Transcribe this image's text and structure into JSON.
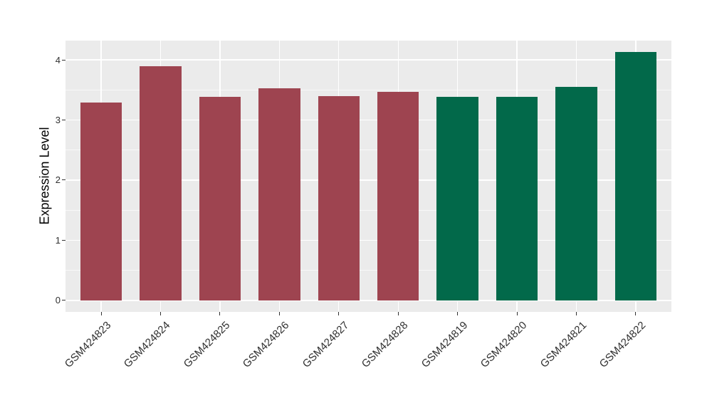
{
  "chart_data": {
    "type": "bar",
    "ylabel": "Expression Level",
    "categories": [
      "GSM424823",
      "GSM424824",
      "GSM424825",
      "GSM424826",
      "GSM424827",
      "GSM424828",
      "GSM424819",
      "GSM424820",
      "GSM424821",
      "GSM424822"
    ],
    "values": [
      3.29,
      3.89,
      3.39,
      3.53,
      3.4,
      3.47,
      3.38,
      3.38,
      3.55,
      4.13
    ],
    "bar_colors": [
      "#9E4450",
      "#9E4450",
      "#9E4450",
      "#9E4450",
      "#9E4450",
      "#9E4450",
      "#02694A",
      "#02694A",
      "#02694A",
      "#02694A"
    ],
    "y_ticks": [
      0,
      1,
      2,
      3,
      4
    ],
    "y_minor_ticks": [
      0.5,
      1.5,
      2.5,
      3.5
    ],
    "ylim": [
      -0.19,
      4.32
    ],
    "grid": true,
    "legend": "none",
    "x_tick_rotation": 45,
    "bar_width_fraction": 0.7
  },
  "style": {
    "background": "#FFFFFF",
    "panel_background": "#EBEBEB",
    "grid_color": "#FFFFFF",
    "tick_color": "#333333",
    "tick_label_color": "#303030",
    "axis_title_color": "#000000"
  }
}
